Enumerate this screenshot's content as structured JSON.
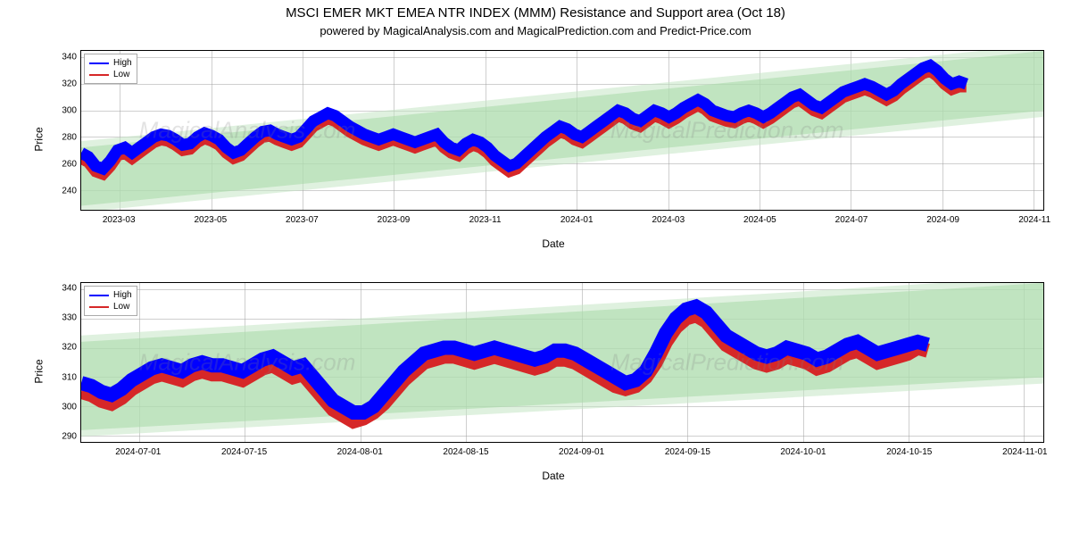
{
  "title": "MSCI EMER MKT EMEA NTR INDEX (MMM) Resistance and Support area (Oct 18)",
  "subtitle": "powered by MagicalAnalysis.com and MagicalPrediction.com and Predict-Price.com",
  "legend": {
    "high": "High",
    "low": "Low"
  },
  "colors": {
    "high_line": "#0000ff",
    "low_line": "#d62728",
    "grid": "rgba(160,160,160,0.5)",
    "border": "#000000",
    "band_fill": "#a6d8a6",
    "band_fill_light": "#c5e6c5",
    "watermark": "rgba(128,128,128,0.22)",
    "background": "#ffffff"
  },
  "watermarks": [
    "MagicalAnalysis.com",
    "MagicalPrediction.com"
  ],
  "top_chart": {
    "type": "line",
    "ylabel": "Price",
    "xlabel": "Date",
    "ylim": [
      225,
      345
    ],
    "yticks": [
      240,
      260,
      280,
      300,
      320,
      340
    ],
    "xticks": [
      "2023-03",
      "2023-05",
      "2023-07",
      "2023-09",
      "2023-11",
      "2024-01",
      "2024-03",
      "2024-05",
      "2024-07",
      "2024-09",
      "2024-11"
    ],
    "xtick_pos_pct": [
      4,
      13.5,
      23,
      32.5,
      42,
      51.5,
      61,
      70.5,
      80,
      89.5,
      99
    ],
    "band": {
      "start_low": 228,
      "start_high": 272,
      "end_low": 300,
      "end_high": 345
    },
    "data_high": [
      268,
      265,
      258,
      256,
      262,
      270,
      272,
      268,
      272,
      276,
      280,
      282,
      281,
      278,
      274,
      275,
      280,
      283,
      281,
      278,
      272,
      268,
      270,
      275,
      280,
      284,
      285,
      282,
      280,
      278,
      280,
      286,
      292,
      295,
      298,
      296,
      292,
      288,
      285,
      282,
      280,
      278,
      280,
      282,
      280,
      278,
      276,
      278,
      280,
      282,
      276,
      272,
      270,
      275,
      278,
      276,
      272,
      266,
      262,
      258,
      260,
      265,
      270,
      275,
      280,
      284,
      288,
      286,
      282,
      280,
      284,
      288,
      292,
      296,
      300,
      298,
      294,
      292,
      296,
      300,
      298,
      295,
      298,
      302,
      305,
      308,
      305,
      300,
      298,
      296,
      295,
      298,
      300,
      298,
      295,
      298,
      302,
      306,
      310,
      312,
      308,
      304,
      302,
      306,
      310,
      314,
      316,
      318,
      320,
      318,
      315,
      312,
      315,
      320,
      324,
      328,
      332,
      334,
      330,
      324,
      320,
      322,
      320
    ],
    "data_low": [
      264,
      261,
      254,
      252,
      258,
      266,
      268,
      264,
      268,
      272,
      276,
      278,
      277,
      274,
      270,
      271,
      276,
      279,
      277,
      274,
      268,
      264,
      266,
      271,
      276,
      280,
      281,
      278,
      276,
      274,
      276,
      282,
      288,
      291,
      294,
      292,
      288,
      284,
      281,
      278,
      276,
      274,
      276,
      278,
      276,
      274,
      272,
      274,
      276,
      278,
      272,
      268,
      266,
      271,
      274,
      272,
      268,
      262,
      258,
      254,
      256,
      261,
      266,
      271,
      276,
      280,
      284,
      282,
      278,
      276,
      280,
      284,
      288,
      292,
      296,
      294,
      290,
      288,
      292,
      296,
      294,
      291,
      294,
      298,
      301,
      304,
      301,
      296,
      294,
      292,
      291,
      294,
      296,
      294,
      291,
      294,
      298,
      302,
      306,
      308,
      304,
      300,
      298,
      302,
      306,
      310,
      312,
      314,
      316,
      314,
      311,
      308,
      311,
      316,
      320,
      324,
      328,
      330,
      326,
      320,
      316,
      318,
      318
    ],
    "title_fontsize": 15,
    "label_fontsize": 12,
    "tick_fontsize": 10,
    "line_width": 1.3
  },
  "bottom_chart": {
    "type": "line",
    "ylabel": "Price",
    "xlabel": "Date",
    "ylim": [
      288,
      342
    ],
    "yticks": [
      290,
      300,
      310,
      320,
      330,
      340
    ],
    "xticks": [
      "2024-07-01",
      "2024-07-15",
      "2024-08-01",
      "2024-08-15",
      "2024-09-01",
      "2024-09-15",
      "2024-10-01",
      "2024-10-15",
      "2024-11-01"
    ],
    "xtick_pos_pct": [
      6,
      17,
      29,
      40,
      52,
      63,
      75,
      86,
      98
    ],
    "band": {
      "start_low": 292,
      "start_high": 322,
      "end_low": 310,
      "end_high": 342
    },
    "data_high": [
      308,
      307,
      305,
      304,
      306,
      309,
      311,
      313,
      314,
      313,
      312,
      314,
      315,
      314,
      314,
      313,
      312,
      314,
      316,
      317,
      315,
      313,
      314,
      310,
      306,
      302,
      300,
      298,
      298,
      300,
      304,
      308,
      312,
      315,
      318,
      319,
      320,
      320,
      319,
      318,
      319,
      320,
      319,
      318,
      317,
      316,
      317,
      319,
      319,
      318,
      316,
      314,
      312,
      310,
      308,
      309,
      312,
      318,
      325,
      330,
      333,
      334,
      332,
      328,
      324,
      322,
      320,
      318,
      317,
      318,
      320,
      319,
      318,
      316,
      317,
      319,
      321,
      322,
      320,
      318,
      319,
      320,
      321,
      322,
      321
    ],
    "data_low": [
      305,
      304,
      302,
      301,
      303,
      306,
      308,
      310,
      311,
      310,
      309,
      311,
      312,
      311,
      311,
      310,
      309,
      311,
      313,
      314,
      312,
      310,
      311,
      307,
      303,
      299,
      297,
      295,
      296,
      298,
      301,
      305,
      309,
      312,
      315,
      316,
      317,
      317,
      316,
      315,
      316,
      317,
      316,
      315,
      314,
      313,
      314,
      316,
      316,
      315,
      313,
      311,
      309,
      307,
      306,
      307,
      310,
      315,
      322,
      327,
      330,
      331,
      329,
      325,
      321,
      319,
      317,
      315,
      314,
      315,
      317,
      316,
      315,
      313,
      314,
      316,
      318,
      319,
      317,
      315,
      316,
      317,
      318,
      320,
      319
    ],
    "line_width": 1.6
  }
}
